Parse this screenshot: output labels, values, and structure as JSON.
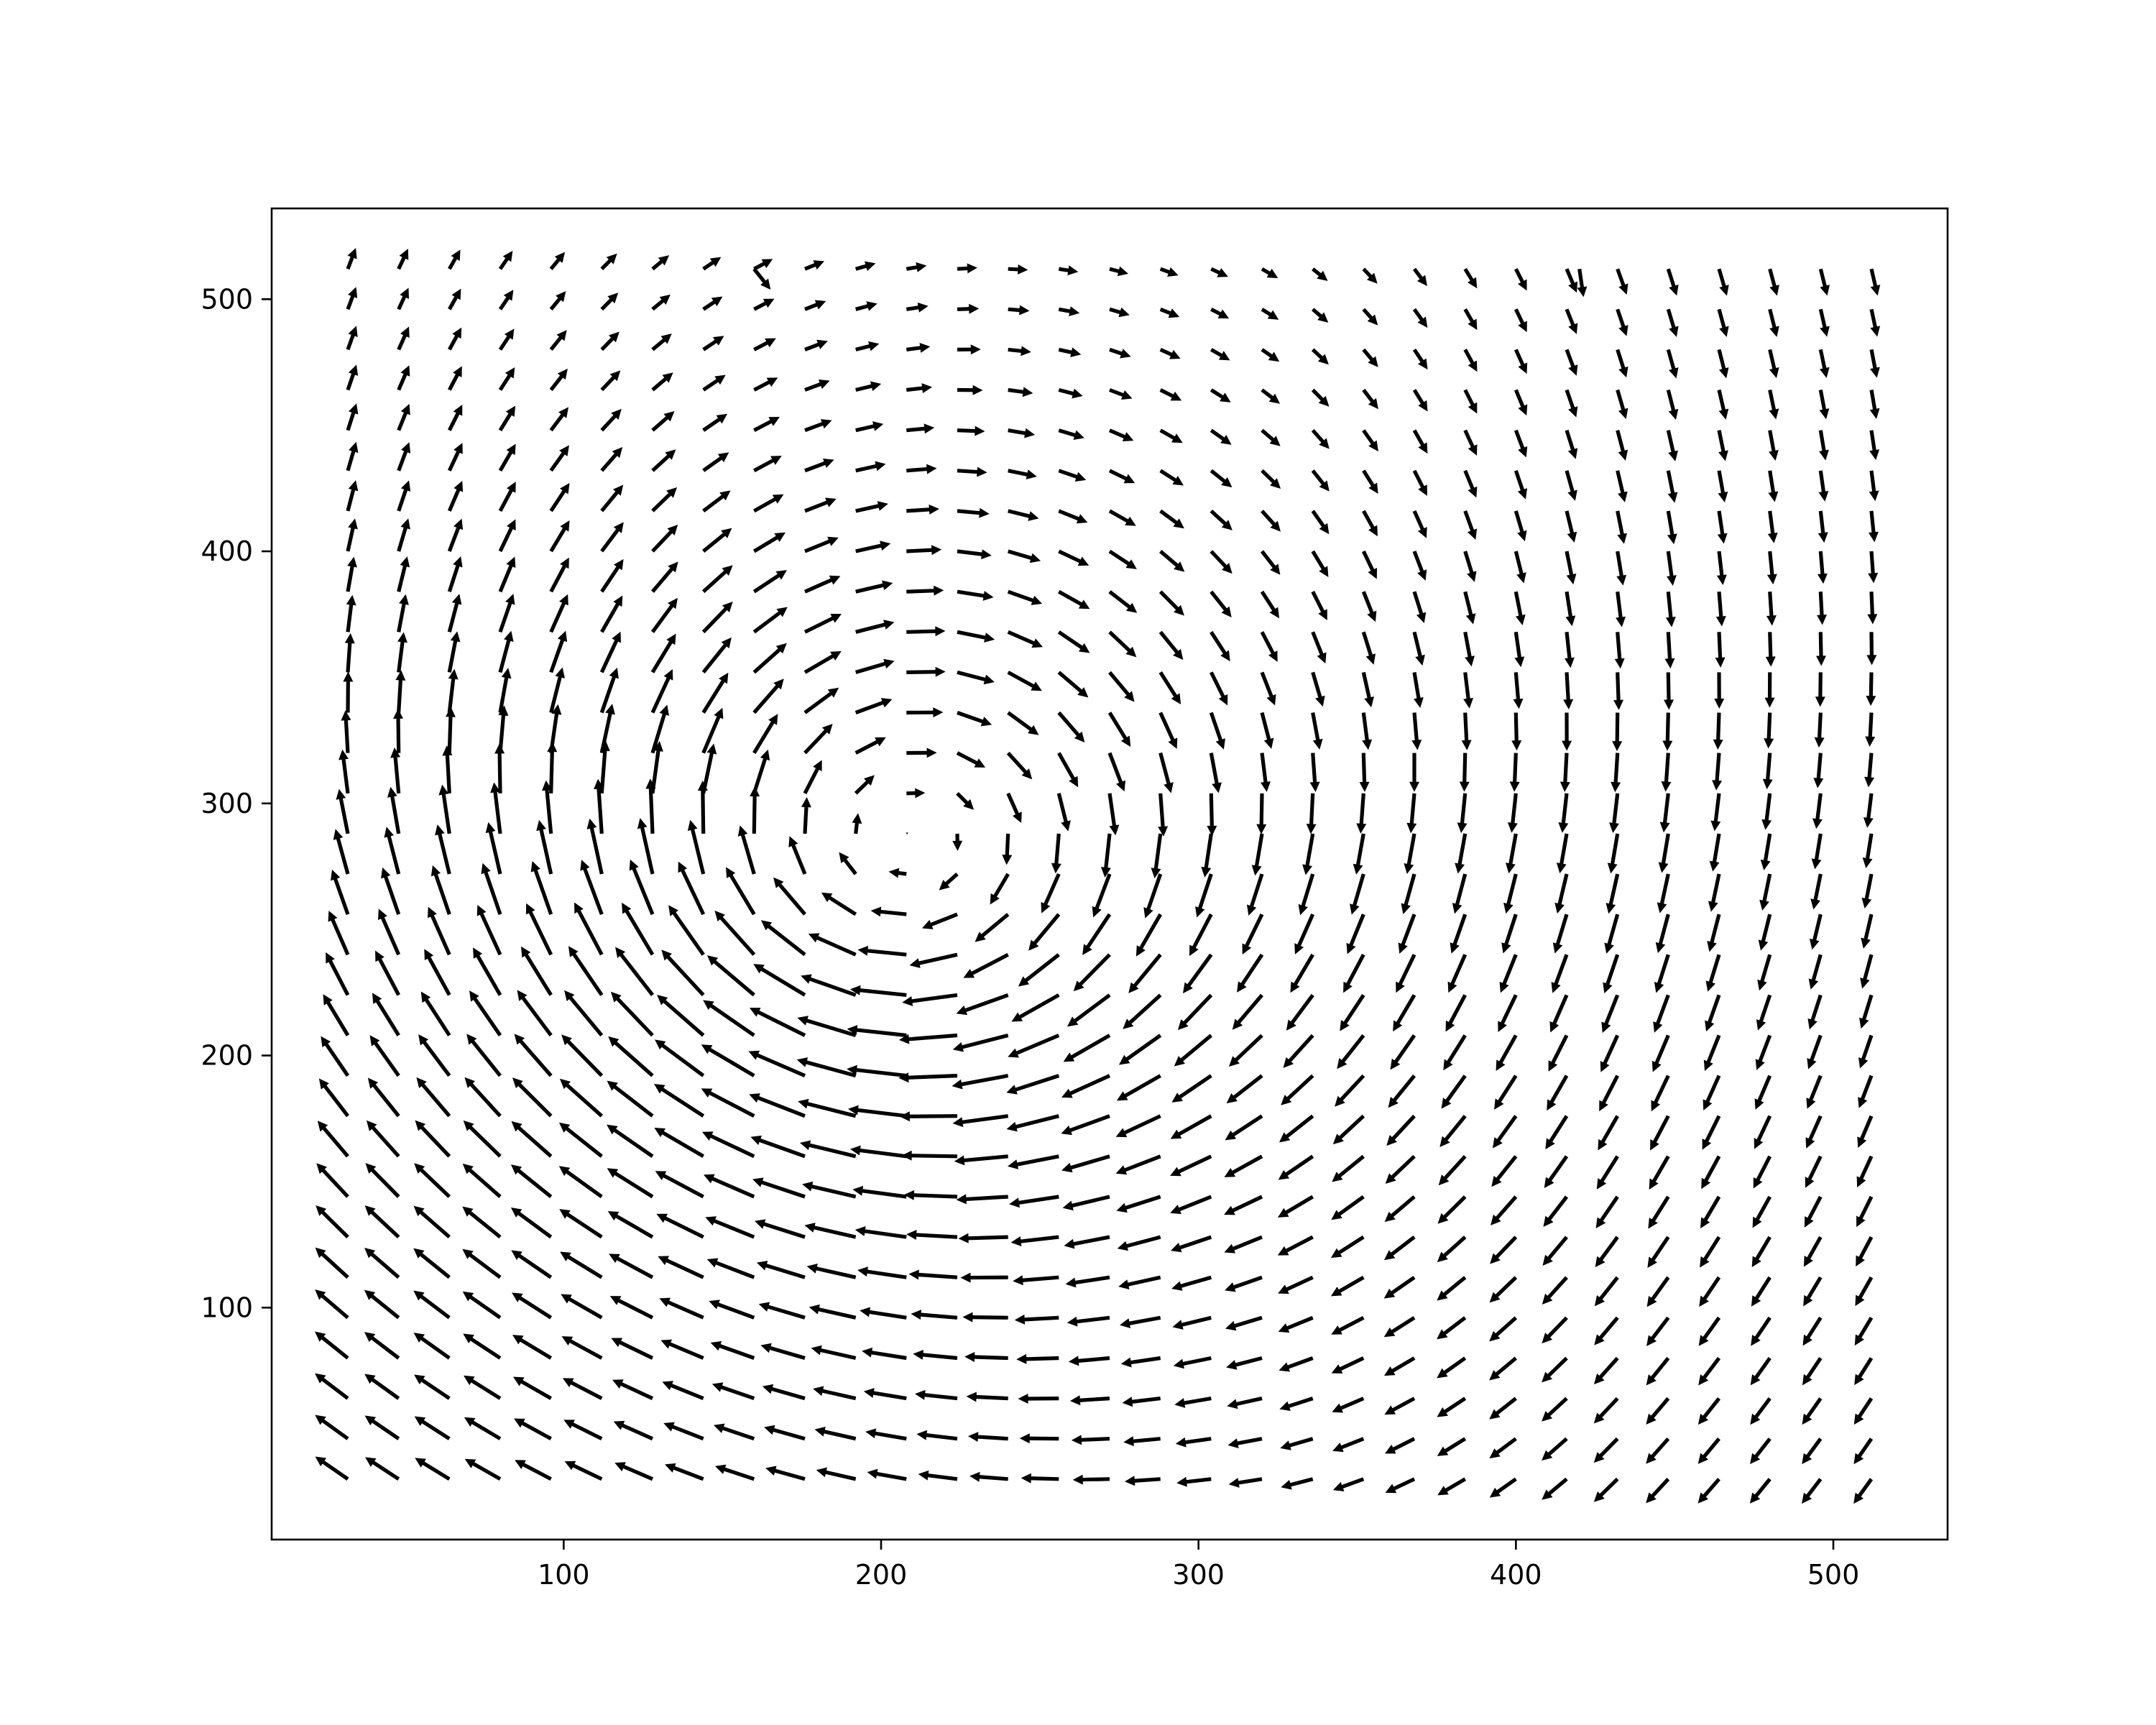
{
  "chart_data": {
    "type": "quiver",
    "title": "",
    "xlabel": "",
    "ylabel": "",
    "xlim": [
      8,
      536
    ],
    "ylim": [
      8,
      536
    ],
    "x_ticks": [
      100,
      200,
      300,
      400,
      500
    ],
    "y_ticks": [
      100,
      200,
      300,
      400,
      500
    ],
    "x_tick_labels": [
      "100",
      "200",
      "300",
      "400",
      "500"
    ],
    "y_tick_labels": [
      "100",
      "200",
      "300",
      "400",
      "500"
    ],
    "grid": false,
    "legend": "none",
    "field": {
      "x_start": 32,
      "x_step": 16,
      "nx": 31,
      "y_start": 32,
      "y_step": 16,
      "ny": 31,
      "vortex_center": [
        205,
        278
      ],
      "vortex_core_radius": 80,
      "vortex_peak_speed": 6.0,
      "rotation": "clockwise",
      "inward_drift": 0.06,
      "background_flow": [
        -1.2,
        0.6
      ],
      "arrow_color": "#000000"
    },
    "anomalies": [
      {
        "x": 160,
        "y": 512,
        "u": 2.0,
        "v": -2.5
      },
      {
        "x": 420,
        "y": 512,
        "u": 0.5,
        "v": -3.4
      }
    ]
  }
}
